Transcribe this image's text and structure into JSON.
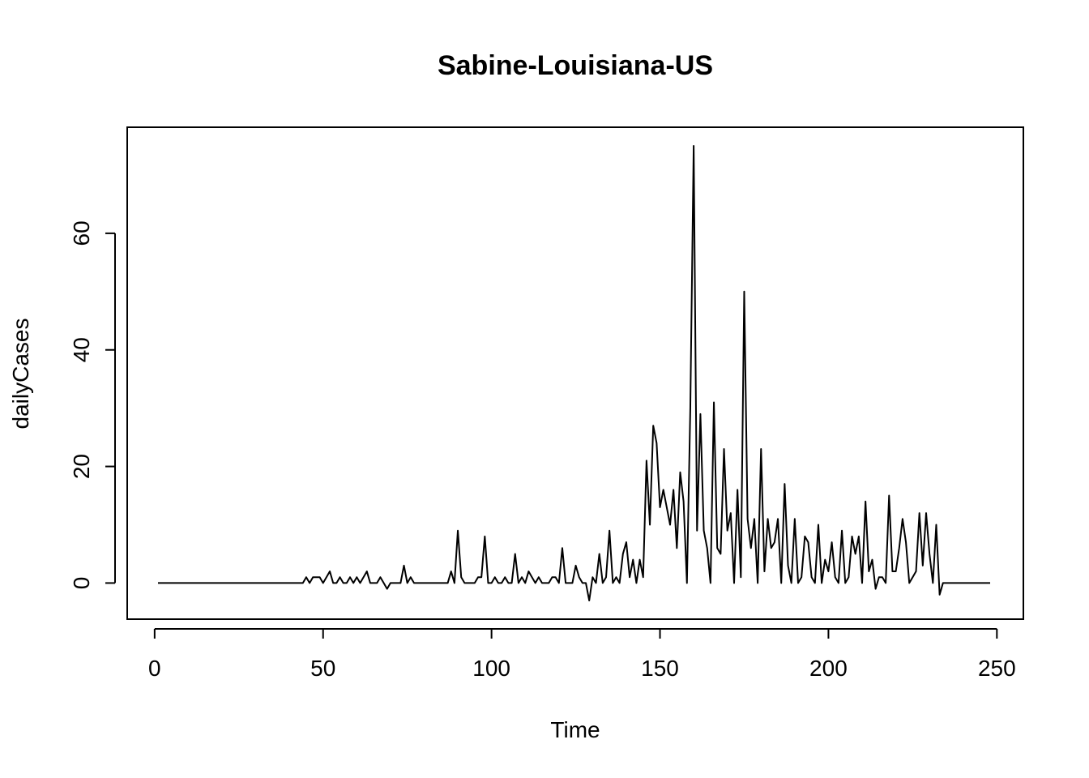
{
  "chart_data": {
    "type": "line",
    "title": "Sabine-Louisiana-US",
    "xlabel": "Time",
    "ylabel": "dailyCases",
    "xlim": [
      1,
      248
    ],
    "ylim": [
      -3,
      75
    ],
    "x_ticks": [
      0,
      50,
      100,
      150,
      200,
      250
    ],
    "y_ticks": [
      0,
      20,
      40,
      60
    ],
    "x_tick_labels": [
      "0",
      "50",
      "100",
      "150",
      "200",
      "250"
    ],
    "y_tick_labels": [
      "0",
      "20",
      "40",
      "60"
    ],
    "grid": false,
    "legend": "none",
    "series": [
      {
        "x_start": 1,
        "values": [
          0,
          0,
          0,
          0,
          0,
          0,
          0,
          0,
          0,
          0,
          0,
          0,
          0,
          0,
          0,
          0,
          0,
          0,
          0,
          0,
          0,
          0,
          0,
          0,
          0,
          0,
          0,
          0,
          0,
          0,
          0,
          0,
          0,
          0,
          0,
          0,
          0,
          0,
          0,
          0,
          0,
          0,
          0,
          0,
          1,
          0,
          1,
          1,
          1,
          0,
          1,
          2,
          0,
          0,
          1,
          0,
          0,
          1,
          0,
          1,
          0,
          1,
          2,
          0,
          0,
          0,
          1,
          0,
          -1,
          0,
          0,
          0,
          0,
          3,
          0,
          1,
          0,
          0,
          0,
          0,
          0,
          0,
          0,
          0,
          0,
          0,
          0,
          2,
          0,
          9,
          1,
          0,
          0,
          0,
          0,
          1,
          1,
          8,
          0,
          0,
          1,
          0,
          0,
          1,
          0,
          0,
          5,
          0,
          1,
          0,
          2,
          1,
          0,
          1,
          0,
          0,
          0,
          1,
          1,
          0,
          6,
          0,
          0,
          0,
          3,
          1,
          0,
          0,
          -3,
          1,
          0,
          5,
          0,
          1,
          9,
          0,
          1,
          0,
          5,
          7,
          1,
          4,
          0,
          4,
          1,
          21,
          10,
          27,
          24,
          13,
          16,
          13,
          10,
          16,
          6,
          19,
          14,
          0,
          30,
          75,
          9,
          29,
          9,
          6,
          0,
          31,
          6,
          5,
          23,
          9,
          12,
          0,
          16,
          1,
          50,
          11,
          6,
          11,
          0,
          23,
          2,
          11,
          6,
          7,
          11,
          0,
          17,
          3,
          0,
          11,
          0,
          1,
          8,
          7,
          1,
          0,
          10,
          0,
          4,
          2,
          7,
          1,
          0,
          9,
          0,
          1,
          8,
          5,
          8,
          0,
          14,
          2,
          4,
          -1,
          1,
          1,
          0,
          15,
          2,
          2,
          6,
          11,
          7,
          0,
          1,
          2,
          12,
          3,
          12,
          5,
          0,
          10,
          -2,
          0,
          0,
          0,
          0,
          0,
          0,
          0,
          0,
          0,
          0,
          0,
          0,
          0,
          0,
          0
        ]
      }
    ]
  }
}
